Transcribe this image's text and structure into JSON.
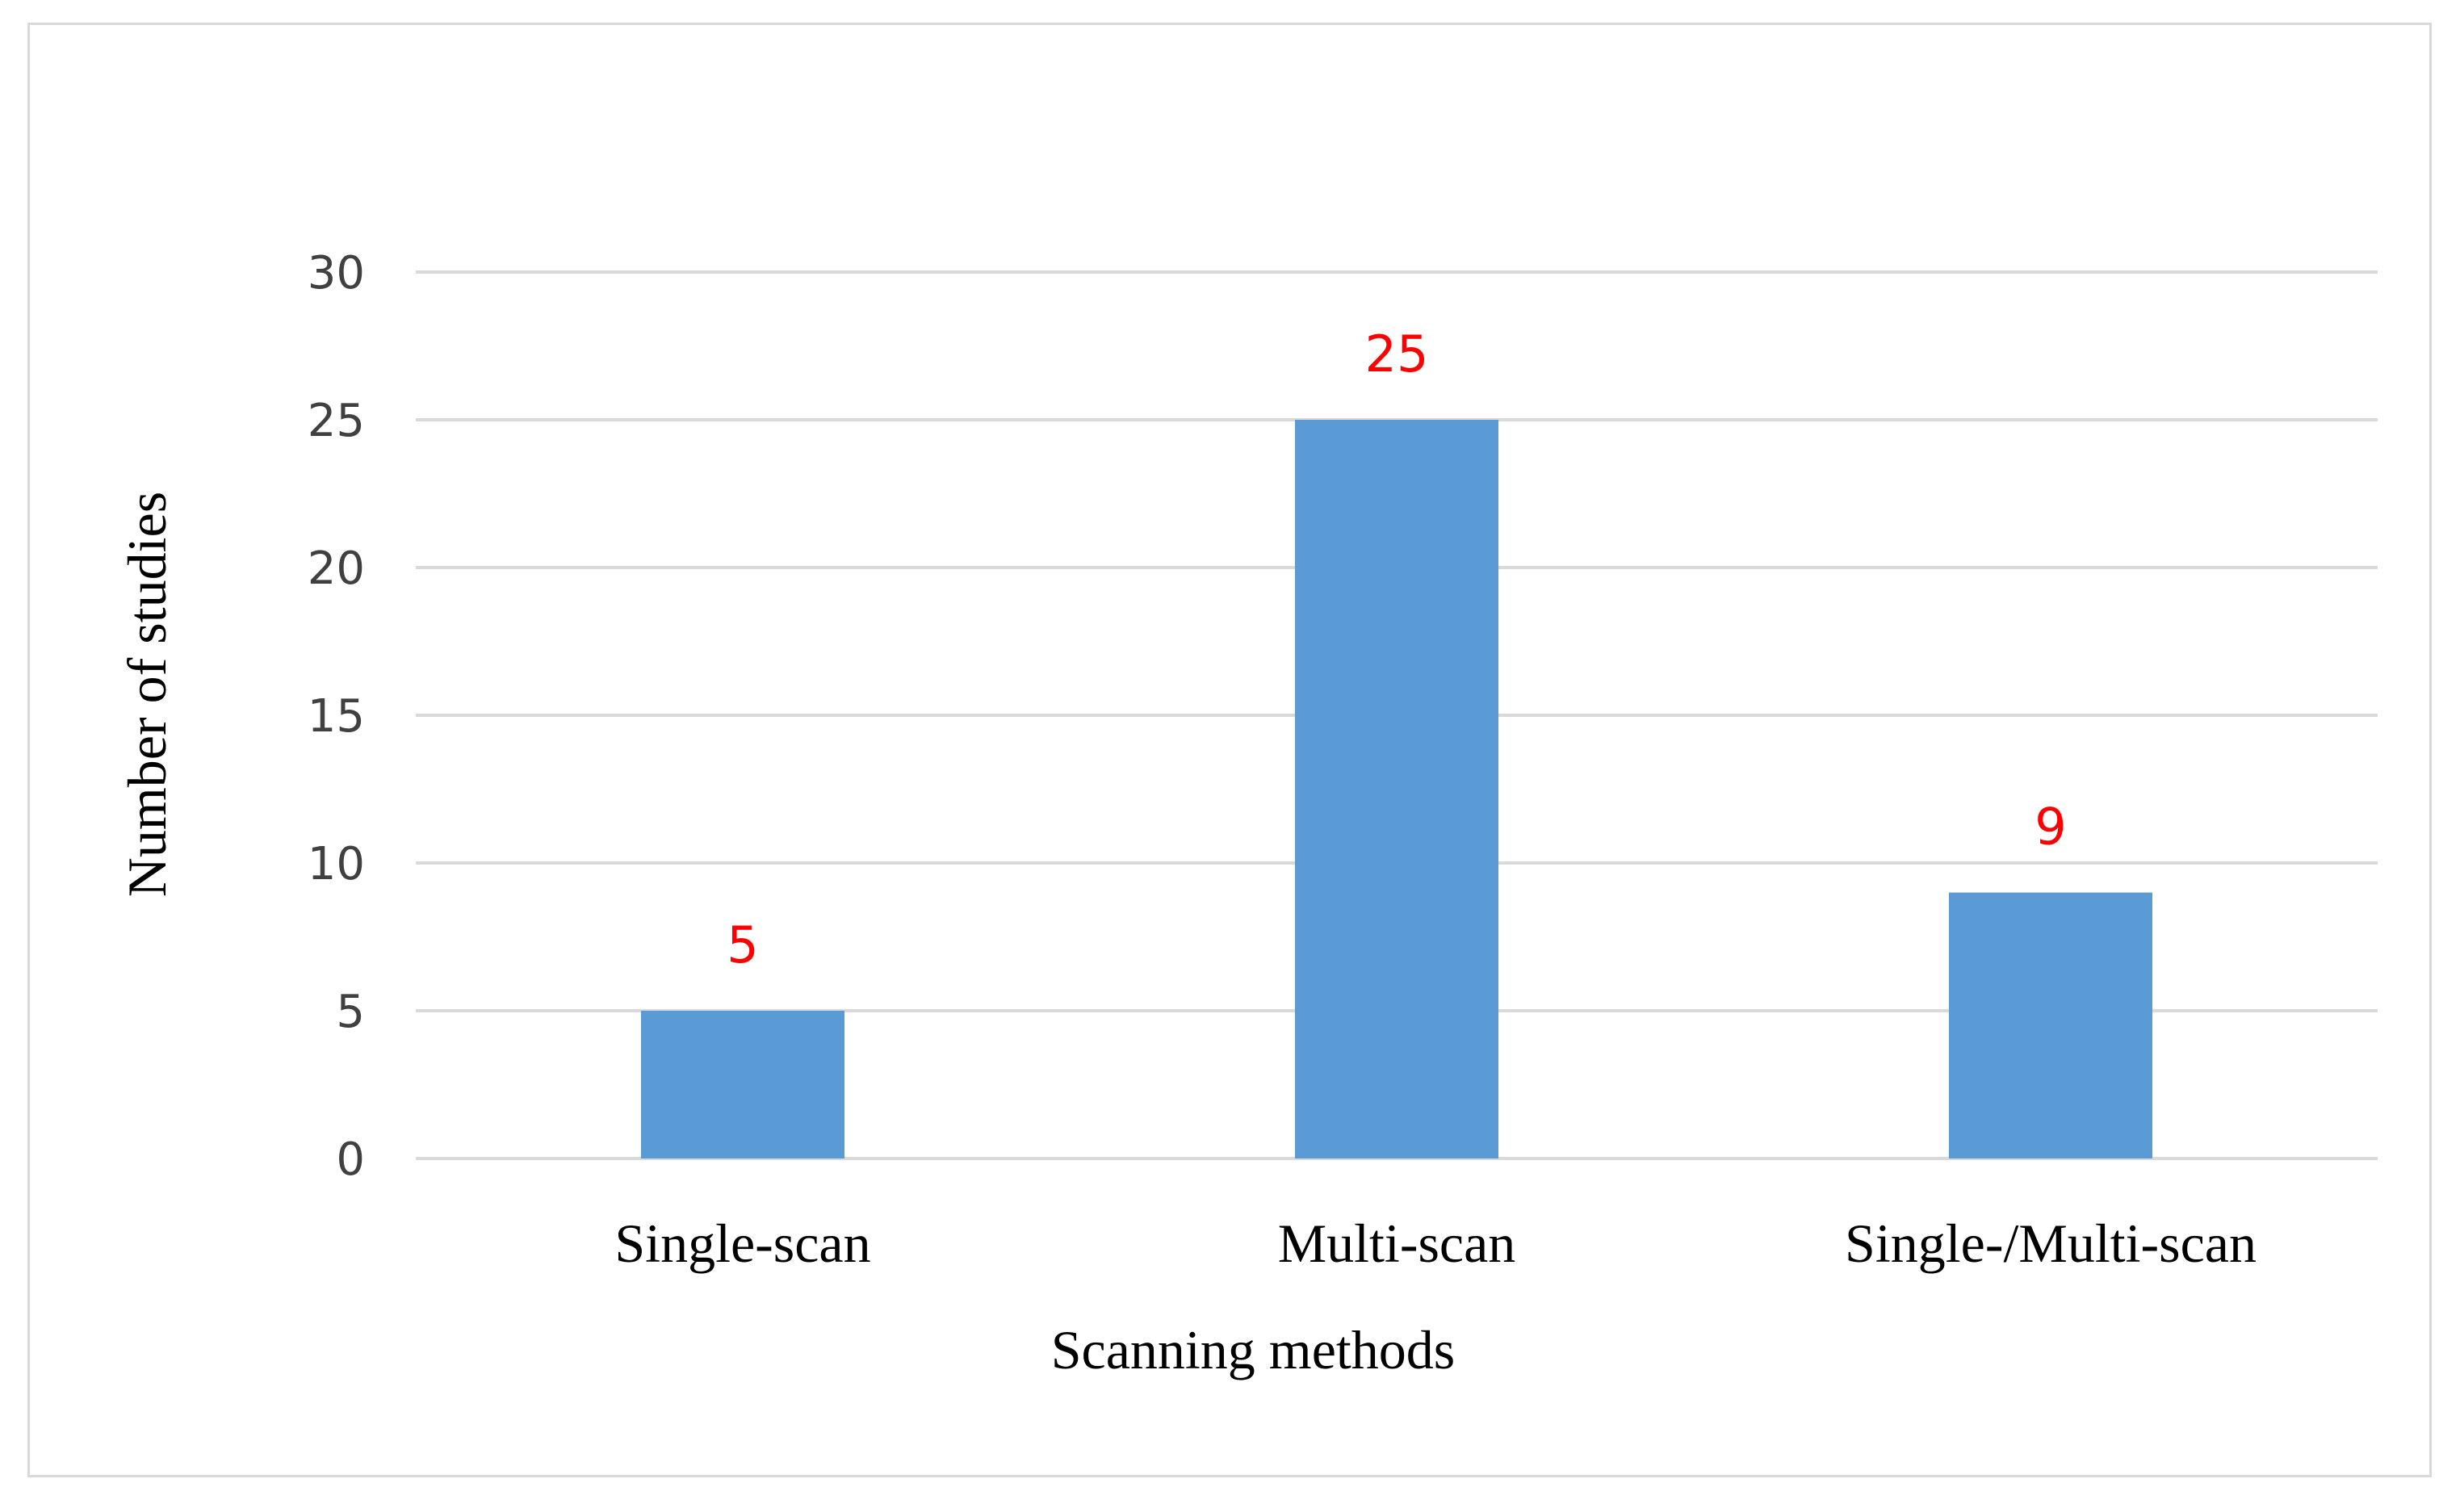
{
  "chart_data": {
    "type": "bar",
    "title": "",
    "xlabel": "Scanning methods",
    "ylabel": "Number of studies",
    "categories": [
      "Single-scan",
      "Multi-scan",
      "Single-/Multi-scan"
    ],
    "values": [
      5,
      25,
      9
    ],
    "data_labels": [
      "5",
      "25",
      "9"
    ],
    "ylim": [
      0,
      30
    ],
    "yticks": [
      "0",
      "5",
      "10",
      "15",
      "20",
      "25",
      "30"
    ],
    "grid": true,
    "legend": "none",
    "colors": {
      "bar": "#5b9bd5",
      "data_label": "#ff0000",
      "grid": "#d9d9d9",
      "axis_text": "#404040",
      "title_text": "#000000"
    }
  }
}
